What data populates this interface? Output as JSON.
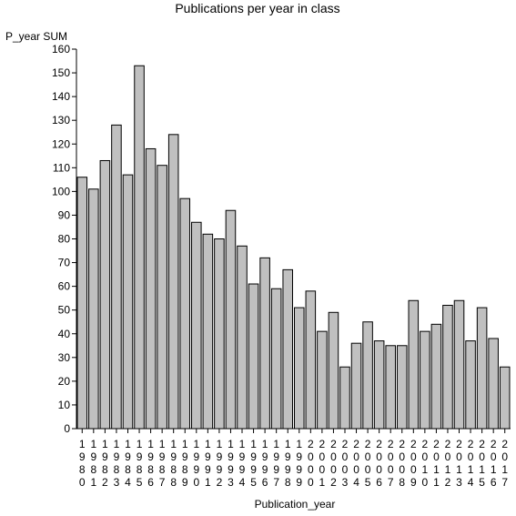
{
  "chart_data": {
    "type": "bar",
    "title": "Publications per year in class",
    "xlabel": "Publication_year",
    "ylabel": "P_year SUM",
    "ylim": [
      0,
      160
    ],
    "yticks": [
      0,
      10,
      20,
      30,
      40,
      50,
      60,
      70,
      80,
      90,
      100,
      110,
      120,
      130,
      140,
      150,
      160
    ],
    "grid": false,
    "categories": [
      "1980",
      "1981",
      "1982",
      "1983",
      "1984",
      "1985",
      "1986",
      "1987",
      "1988",
      "1989",
      "1990",
      "1991",
      "1992",
      "1993",
      "1994",
      "1995",
      "1996",
      "1997",
      "1998",
      "1999",
      "2000",
      "2001",
      "2002",
      "2003",
      "2004",
      "2005",
      "2006",
      "2007",
      "2008",
      "2009",
      "2010",
      "2011",
      "2012",
      "2013",
      "2014",
      "2015",
      "2016",
      "2017"
    ],
    "values": [
      106,
      101,
      113,
      128,
      107,
      153,
      118,
      111,
      124,
      97,
      87,
      82,
      80,
      92,
      77,
      61,
      72,
      59,
      67,
      51,
      58,
      41,
      49,
      26,
      36,
      45,
      37,
      35,
      35,
      54,
      41,
      44,
      52,
      54,
      37,
      51,
      38,
      26
    ],
    "colors": {
      "bar_fill": "#c0c0c0",
      "bar_stroke": "#000000",
      "axis": "#000000"
    }
  }
}
